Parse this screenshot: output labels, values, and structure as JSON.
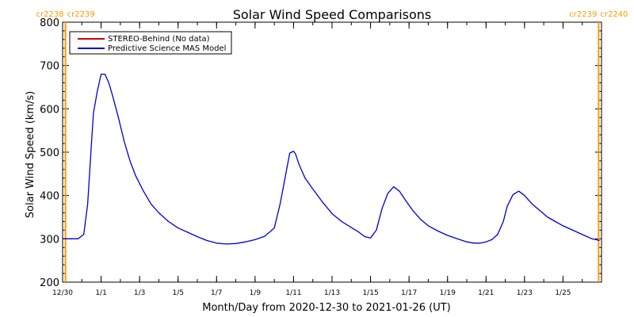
{
  "chart_data": {
    "type": "line",
    "title": "Solar Wind Speed Comparisons",
    "xlabel": "Month/Day from 2020-12-30 to 2021-01-26 (UT)",
    "ylabel": "Solar Wind Speed (km/s)",
    "xlim": [
      0,
      28
    ],
    "ylim": [
      200,
      800
    ],
    "x_ticks": [
      {
        "day": 0,
        "label": "12/30"
      },
      {
        "day": 2,
        "label": "1/1"
      },
      {
        "day": 4,
        "label": "1/3"
      },
      {
        "day": 6,
        "label": "1/5"
      },
      {
        "day": 8,
        "label": "1/7"
      },
      {
        "day": 10,
        "label": "1/9"
      },
      {
        "day": 12,
        "label": "1/11"
      },
      {
        "day": 14,
        "label": "1/13"
      },
      {
        "day": 16,
        "label": "1/15"
      },
      {
        "day": 18,
        "label": "1/17"
      },
      {
        "day": 20,
        "label": "1/19"
      },
      {
        "day": 22,
        "label": "1/21"
      },
      {
        "day": 24,
        "label": "1/23"
      },
      {
        "day": 26,
        "label": "1/25"
      }
    ],
    "y_ticks": [
      "200",
      "300",
      "400",
      "500",
      "600",
      "700",
      "800"
    ],
    "carrington_markers": [
      {
        "day": 0.15,
        "left_label": "cr2238",
        "right_label": "cr2239"
      },
      {
        "day": 27.85,
        "left_label": "cr2239",
        "right_label": "cr2240"
      }
    ],
    "marker_color": "#FF9900",
    "legend": [
      {
        "name": "STEREO-Behind (No data)",
        "color": "#CC0000"
      },
      {
        "name": "Predictive Science MAS Model",
        "color": "#0000CC"
      }
    ],
    "series": [
      {
        "name": "Predictive Science MAS Model",
        "color": "#0000CC",
        "x": [
          0.0,
          0.4,
          0.8,
          1.1,
          1.3,
          1.5,
          1.6,
          1.8,
          2.0,
          2.2,
          2.4,
          2.6,
          2.9,
          3.2,
          3.5,
          3.8,
          4.2,
          4.6,
          5.0,
          5.5,
          6.0,
          6.5,
          7.0,
          7.5,
          8.0,
          8.5,
          9.0,
          9.5,
          10.0,
          10.5,
          11.0,
          11.3,
          11.6,
          11.8,
          12.0,
          12.1,
          12.3,
          12.6,
          13.0,
          13.5,
          14.0,
          14.5,
          15.0,
          15.4,
          15.7,
          16.0,
          16.3,
          16.6,
          16.9,
          17.2,
          17.5,
          17.8,
          18.2,
          18.6,
          19.0,
          19.5,
          20.0,
          20.5,
          21.0,
          21.4,
          21.7,
          22.0,
          22.3,
          22.6,
          22.9,
          23.1,
          23.4,
          23.7,
          24.0,
          24.4,
          24.8,
          25.2,
          25.6,
          26.0,
          26.5,
          27.0,
          27.5,
          27.9
        ],
        "y": [
          300,
          300,
          300,
          310,
          380,
          520,
          590,
          640,
          680,
          680,
          660,
          630,
          580,
          525,
          480,
          445,
          410,
          380,
          360,
          340,
          325,
          315,
          305,
          296,
          290,
          288,
          289,
          293,
          298,
          306,
          325,
          380,
          450,
          498,
          502,
          496,
          470,
          440,
          415,
          385,
          358,
          340,
          326,
          315,
          305,
          302,
          320,
          370,
          405,
          420,
          410,
          390,
          365,
          345,
          330,
          318,
          308,
          300,
          293,
          290,
          290,
          293,
          298,
          310,
          340,
          375,
          402,
          410,
          400,
          380,
          365,
          350,
          340,
          330,
          320,
          310,
          300,
          296
        ]
      }
    ]
  }
}
